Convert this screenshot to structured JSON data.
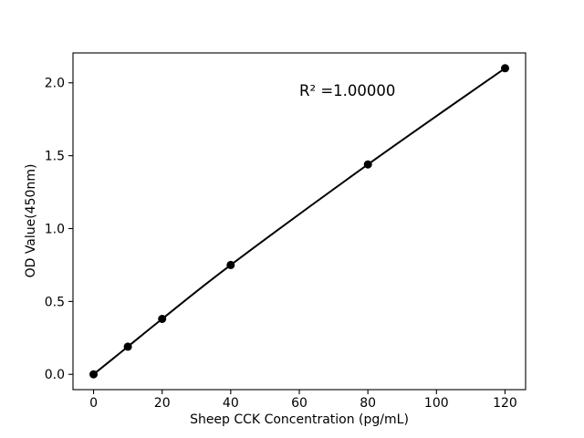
{
  "figure": {
    "background": "#ffffff"
  },
  "chart_data": {
    "type": "line",
    "title": "",
    "xlabel": "Sheep CCK Concentration (pg/mL)",
    "ylabel": "OD Value(450nm)",
    "annotation": {
      "text": "R² =1.00000",
      "x": 60,
      "y": 1.95
    },
    "x": [
      0,
      10,
      20,
      40,
      80,
      120
    ],
    "y": [
      0.0,
      0.19,
      0.38,
      0.75,
      1.44,
      2.1
    ],
    "xticks": {
      "values": [
        0,
        20,
        40,
        60,
        80,
        100,
        120
      ],
      "labels": [
        "0",
        "20",
        "40",
        "60",
        "80",
        "100",
        "120"
      ]
    },
    "yticks": {
      "values": [
        0.0,
        0.5,
        1.0,
        1.5,
        2.0
      ],
      "labels": [
        "0.0",
        "0.5",
        "1.0",
        "1.5",
        "2.0"
      ]
    },
    "xlim": [
      -6,
      126
    ],
    "ylim": [
      -0.105,
      2.205
    ],
    "grid": false,
    "legend": "none",
    "colors": {
      "line": "#000000",
      "marker": "#000000",
      "axes": "#000000",
      "text": "#000000"
    }
  }
}
